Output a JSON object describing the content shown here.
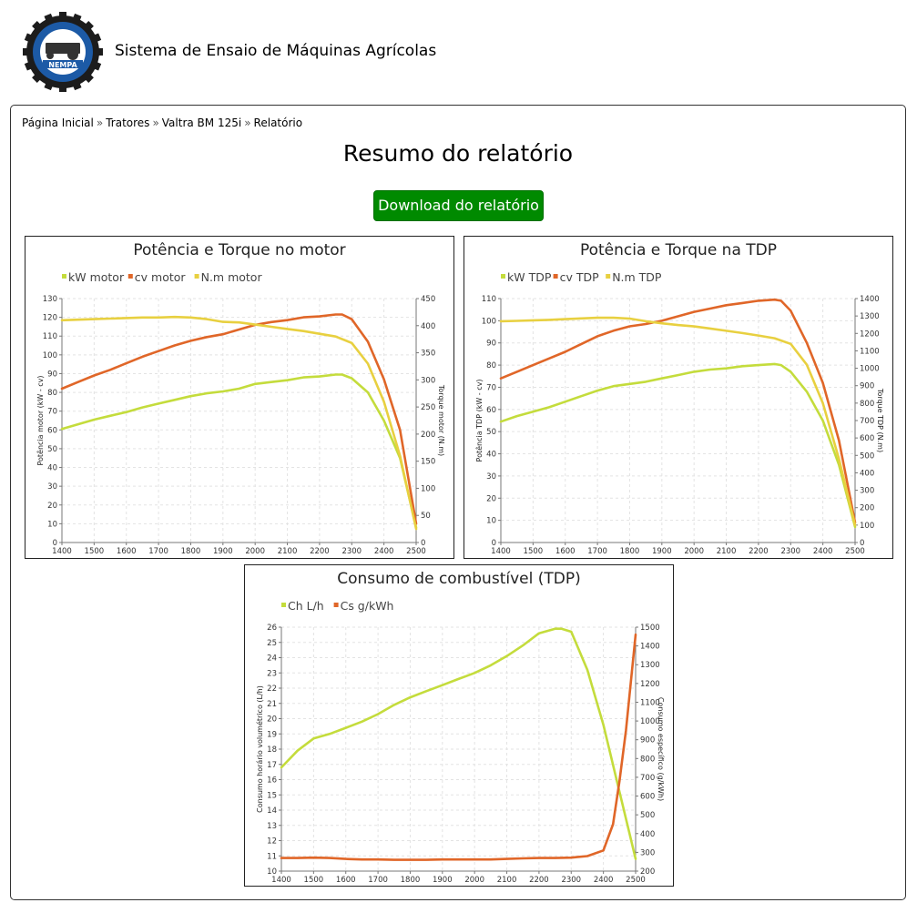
{
  "header": {
    "site_title": "Sistema de Ensaio de Máquinas Agrícolas",
    "logo_text": "NEMPA"
  },
  "breadcrumb": {
    "items": [
      {
        "label": "Página Inicial"
      },
      {
        "label": "Tratores"
      },
      {
        "label": "Valtra BM 125i"
      },
      {
        "label": "Relatório"
      }
    ],
    "separator": "»"
  },
  "page": {
    "heading": "Resumo do relatório",
    "download_label": "Download do relatório"
  },
  "colors": {
    "green": "#c4dc3c",
    "orange": "#e06628",
    "yellow": "#e8d040",
    "button": "#008a00"
  },
  "chart_data": [
    {
      "type": "line",
      "title": "Potência e Torque no motor",
      "xlabel": "",
      "ylabel": "Potência motor (kW - cv)",
      "y2label": "Torque motor (N.m)",
      "x_ticks": [
        "1400",
        "1500",
        "1600",
        "1700",
        "1800",
        "1900",
        "2000",
        "2100",
        "2200",
        "2300",
        "2400",
        "2500"
      ],
      "xlim": [
        1400,
        2500
      ],
      "ylim": [
        0,
        130
      ],
      "y_ticks": [
        0,
        10,
        20,
        30,
        40,
        50,
        60,
        70,
        80,
        90,
        100,
        110,
        120,
        130
      ],
      "y2lim": [
        0,
        450
      ],
      "y2_ticks": [
        0,
        50,
        100,
        150,
        200,
        250,
        300,
        350,
        400,
        450
      ],
      "grid": true,
      "legend_position": "top-left",
      "series": [
        {
          "name": "kW motor",
          "axis": "left",
          "color": "#c4dc3c",
          "x": [
            1400,
            1450,
            1500,
            1550,
            1600,
            1650,
            1700,
            1750,
            1800,
            1850,
            1900,
            1950,
            2000,
            2050,
            2100,
            2150,
            2200,
            2250,
            2270,
            2300,
            2350,
            2400,
            2450,
            2500
          ],
          "y": [
            60.5,
            63,
            65.5,
            67.5,
            69.5,
            72,
            74,
            76,
            78,
            79.5,
            80.5,
            82,
            84.5,
            85.5,
            86.5,
            88,
            88.5,
            89.5,
            89.5,
            87.5,
            80,
            65,
            45,
            8
          ]
        },
        {
          "name": "cv motor",
          "axis": "left",
          "color": "#e06628",
          "x": [
            1400,
            1450,
            1500,
            1550,
            1600,
            1650,
            1700,
            1750,
            1800,
            1850,
            1900,
            1950,
            2000,
            2050,
            2100,
            2150,
            2200,
            2250,
            2270,
            2300,
            2350,
            2400,
            2450,
            2500
          ],
          "y": [
            82,
            85.5,
            89,
            92,
            95.5,
            99,
            102,
            105,
            107.5,
            109.5,
            111,
            113.5,
            116,
            117.5,
            118.5,
            120,
            120.5,
            121.5,
            121.5,
            119,
            107,
            87,
            60,
            10
          ]
        },
        {
          "name": "N.m motor",
          "axis": "right",
          "color": "#e8d040",
          "x": [
            1400,
            1450,
            1500,
            1550,
            1600,
            1650,
            1700,
            1750,
            1800,
            1850,
            1900,
            1950,
            2000,
            2050,
            2100,
            2150,
            2200,
            2250,
            2300,
            2350,
            2400,
            2450,
            2500
          ],
          "y": [
            410,
            411,
            412,
            413,
            414,
            415,
            415,
            416,
            415,
            412,
            407,
            406,
            402,
            398,
            394,
            390,
            385,
            380,
            368,
            330,
            260,
            160,
            25
          ]
        }
      ]
    },
    {
      "type": "line",
      "title": "Potência e Torque na TDP",
      "xlabel": "",
      "ylabel": "Potência TDP (kW - cv)",
      "y2label": "Torque TDP (N.m)",
      "x_ticks": [
        "1400",
        "1500",
        "1600",
        "1700",
        "1800",
        "1900",
        "2000",
        "2100",
        "2200",
        "2300",
        "2400",
        "2500"
      ],
      "xlim": [
        1400,
        2500
      ],
      "ylim": [
        0,
        110
      ],
      "y_ticks": [
        0,
        10,
        20,
        30,
        40,
        50,
        60,
        70,
        80,
        90,
        100,
        110
      ],
      "y2lim": [
        0,
        1400
      ],
      "y2_ticks": [
        0,
        100,
        200,
        300,
        400,
        500,
        600,
        700,
        800,
        900,
        1000,
        1100,
        1200,
        1300,
        1400
      ],
      "grid": true,
      "legend_position": "top-left",
      "series": [
        {
          "name": "kW TDP",
          "axis": "left",
          "color": "#c4dc3c",
          "x": [
            1400,
            1450,
            1500,
            1550,
            1600,
            1650,
            1700,
            1750,
            1800,
            1850,
            1900,
            1950,
            2000,
            2050,
            2100,
            2150,
            2200,
            2250,
            2270,
            2300,
            2350,
            2400,
            2450,
            2500
          ],
          "y": [
            54.5,
            57,
            59,
            61,
            63.5,
            66,
            68.5,
            70.5,
            71.5,
            72.5,
            74,
            75.5,
            77,
            78,
            78.5,
            79.5,
            80,
            80.5,
            80,
            77,
            68,
            55,
            35,
            7
          ]
        },
        {
          "name": "cv TDP",
          "axis": "left",
          "color": "#e06628",
          "x": [
            1400,
            1450,
            1500,
            1550,
            1600,
            1650,
            1700,
            1750,
            1800,
            1850,
            1900,
            1950,
            2000,
            2050,
            2100,
            2150,
            2200,
            2250,
            2270,
            2300,
            2350,
            2400,
            2450,
            2500
          ],
          "y": [
            74,
            77,
            80,
            83,
            86,
            89.5,
            93,
            95.5,
            97.5,
            98.5,
            100,
            102,
            104,
            105.5,
            107,
            108,
            109,
            109.5,
            109,
            104.5,
            90,
            72,
            46,
            9
          ]
        },
        {
          "name": "N.m TDP",
          "axis": "right",
          "color": "#e8d040",
          "x": [
            1400,
            1450,
            1500,
            1550,
            1600,
            1650,
            1700,
            1750,
            1800,
            1850,
            1900,
            1950,
            2000,
            2050,
            2100,
            2150,
            2200,
            2250,
            2300,
            2350,
            2400,
            2450,
            2500
          ],
          "y": [
            1270,
            1272,
            1275,
            1278,
            1282,
            1286,
            1290,
            1290,
            1285,
            1270,
            1258,
            1248,
            1240,
            1228,
            1215,
            1202,
            1188,
            1172,
            1140,
            1020,
            800,
            480,
            100
          ]
        }
      ]
    },
    {
      "type": "line",
      "title": "Consumo de combustível  (TDP)",
      "xlabel": "",
      "ylabel": "Consumo horário volumétrico (L/h)",
      "y2label": "Consumo específico (g/kWh)",
      "x_ticks": [
        "1400",
        "1500",
        "1600",
        "1700",
        "1800",
        "1900",
        "2000",
        "2100",
        "2200",
        "2300",
        "2400",
        "2500"
      ],
      "xlim": [
        1400,
        2500
      ],
      "ylim": [
        10,
        26
      ],
      "y_ticks": [
        10,
        11,
        12,
        13,
        14,
        15,
        16,
        17,
        18,
        19,
        20,
        21,
        22,
        23,
        24,
        25,
        26
      ],
      "y2lim": [
        200,
        1500
      ],
      "y2_ticks": [
        200,
        300,
        400,
        500,
        600,
        700,
        800,
        900,
        1000,
        1100,
        1200,
        1300,
        1400,
        1500
      ],
      "grid": true,
      "legend_position": "top-left",
      "series": [
        {
          "name": "Ch L/h",
          "axis": "left",
          "color": "#c4dc3c",
          "x": [
            1400,
            1450,
            1500,
            1550,
            1600,
            1650,
            1700,
            1750,
            1800,
            1850,
            1900,
            1950,
            2000,
            2050,
            2100,
            2150,
            2200,
            2250,
            2270,
            2300,
            2350,
            2400,
            2450,
            2500
          ],
          "y": [
            16.8,
            17.9,
            18.7,
            19,
            19.4,
            19.8,
            20.3,
            20.9,
            21.4,
            21.8,
            22.2,
            22.6,
            23,
            23.5,
            24.1,
            24.8,
            25.6,
            25.9,
            25.9,
            25.7,
            23.2,
            19.6,
            15.2,
            10.8
          ]
        },
        {
          "name": "Cs g/kWh",
          "axis": "right",
          "color": "#e06628",
          "x": [
            1400,
            1450,
            1500,
            1550,
            1600,
            1650,
            1700,
            1750,
            1800,
            1850,
            1900,
            1950,
            2000,
            2050,
            2100,
            2150,
            2200,
            2250,
            2300,
            2350,
            2400,
            2430,
            2450,
            2470,
            2500
          ],
          "y": [
            270,
            270,
            272,
            270,
            265,
            262,
            262,
            260,
            260,
            260,
            262,
            262,
            262,
            262,
            265,
            268,
            270,
            270,
            272,
            280,
            310,
            450,
            680,
            950,
            1460
          ]
        }
      ]
    }
  ]
}
